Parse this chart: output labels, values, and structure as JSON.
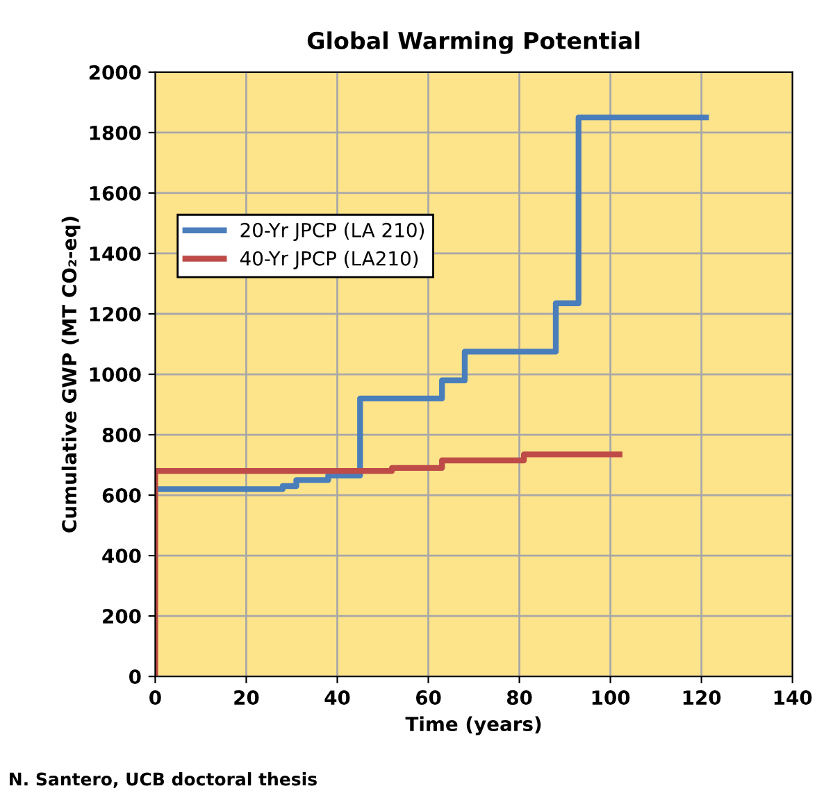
{
  "chart_data": {
    "type": "step",
    "title": "Global Warming Potential",
    "xlabel": "Time (years)",
    "ylabel": "Cumulative GWP (MT CO₂-eq)",
    "series": [
      {
        "name": "20-Yr JPCP (LA 210)",
        "color": "#4a7ebb",
        "x": [
          0,
          28,
          31,
          38,
          45,
          63,
          68,
          88,
          93,
          121
        ],
        "values": [
          620,
          630,
          650,
          665,
          920,
          980,
          1075,
          1235,
          1850,
          1850
        ]
      },
      {
        "name": "40-Yr JPCP (LA210)",
        "color": "#be4b48",
        "x": [
          0,
          0,
          52,
          63,
          81,
          102
        ],
        "values": [
          0,
          680,
          690,
          715,
          735,
          735
        ]
      }
    ],
    "xlim": [
      0,
      140
    ],
    "xticks": [
      0,
      20,
      40,
      60,
      80,
      100,
      120,
      140
    ],
    "ylim": [
      0,
      2000
    ],
    "yticks": [
      0,
      200,
      400,
      600,
      800,
      1000,
      1200,
      1400,
      1600,
      1800,
      2000
    ],
    "grid": true,
    "legend": "top left",
    "line_style": "solid",
    "marker": "none",
    "annotations": [
      "N. Santero, UCB doctoral thesis"
    ]
  }
}
